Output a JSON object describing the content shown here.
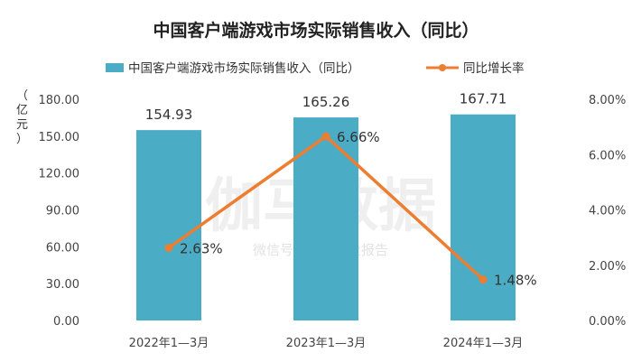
{
  "chart_data": {
    "type": "bar",
    "title": "中国客户端游戏市场实际销售收入（同比）",
    "categories": [
      "2022年1—3月",
      "2023年1—3月",
      "2024年1—3月"
    ],
    "series": [
      {
        "name": "中国客户端游戏市场实际销售收入（同比）",
        "type": "bar",
        "axis": "left",
        "values": [
          154.93,
          165.26,
          167.71
        ],
        "labels": [
          "154.93",
          "165.26",
          "167.71"
        ],
        "color": "#4BACC6"
      },
      {
        "name": "同比增长率",
        "type": "line",
        "axis": "right",
        "values": [
          2.63,
          6.66,
          1.48
        ],
        "labels": [
          "2.63%",
          "6.66%",
          "1.48%"
        ],
        "color": "#ED7D31"
      }
    ],
    "y_left": {
      "label": "（亿元）",
      "range": [
        0,
        180
      ],
      "ticks": [
        "0.00",
        "30.00",
        "60.00",
        "90.00",
        "120.00",
        "150.00",
        "180.00"
      ]
    },
    "y_right": {
      "range": [
        0,
        8
      ],
      "ticks": [
        "0.00%",
        "2.00%",
        "4.00%",
        "6.00%",
        "8.00%"
      ]
    },
    "legend_position": "top",
    "grid": false,
    "watermark": {
      "main": "伽马数据",
      "sub": "微信号：游戏产业报告"
    }
  }
}
